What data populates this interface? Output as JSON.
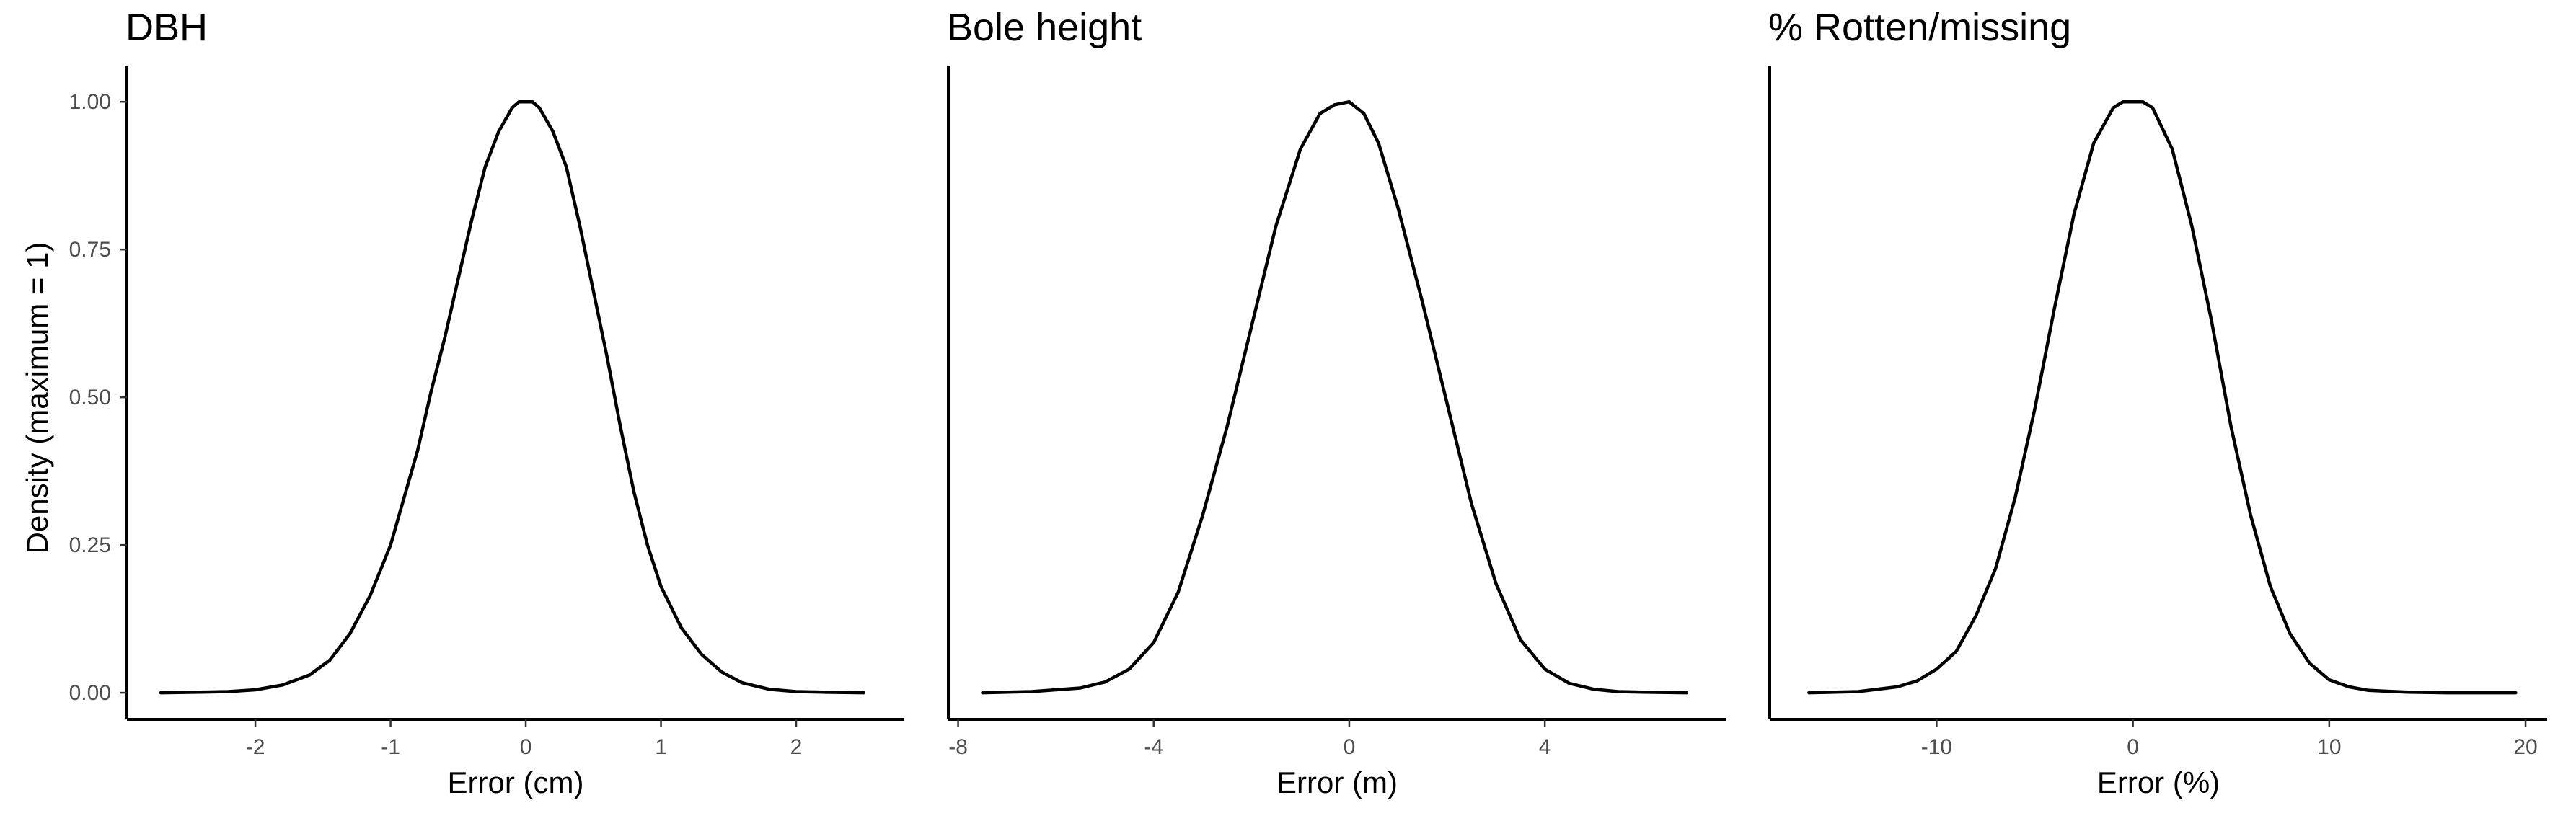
{
  "chart_data": {
    "type": "line",
    "shared_ylabel": "Density (maximum = 1)",
    "ylim": [
      -0.045,
      1.06
    ],
    "y_ticks": [
      0,
      0.25,
      0.5,
      0.75,
      1
    ],
    "y_tick_labels": [
      "0.00",
      "0.25",
      "0.50",
      "0.75",
      "1.00"
    ],
    "grid": false,
    "legend": "none",
    "line_color": "#000000",
    "panels": [
      {
        "title": "DBH",
        "xlabel": "Error (cm)",
        "xlim": [
          -2.95,
          2.8
        ],
        "x_ticks": [
          -2,
          -1,
          0,
          1,
          2
        ],
        "x_tick_labels": [
          "-2",
          "-1",
          "0",
          "1",
          "2"
        ],
        "series": [
          {
            "x": [
              -2.7,
              -2.4,
              -2.2,
              -2.0,
              -1.8,
              -1.6,
              -1.45,
              -1.3,
              -1.15,
              -1.0,
              -0.9,
              -0.8,
              -0.7,
              -0.6,
              -0.5,
              -0.4,
              -0.3,
              -0.2,
              -0.1,
              -0.05,
              0.0,
              0.05,
              0.1,
              0.2,
              0.3,
              0.4,
              0.5,
              0.6,
              0.7,
              0.8,
              0.9,
              1.0,
              1.15,
              1.3,
              1.45,
              1.6,
              1.8,
              2.0,
              2.2,
              2.5
            ],
            "y": [
              0.0,
              0.001,
              0.002,
              0.005,
              0.013,
              0.03,
              0.055,
              0.1,
              0.165,
              0.25,
              0.33,
              0.41,
              0.51,
              0.6,
              0.7,
              0.8,
              0.89,
              0.95,
              0.99,
              1.0,
              1.0,
              1.0,
              0.99,
              0.95,
              0.89,
              0.79,
              0.68,
              0.57,
              0.45,
              0.34,
              0.25,
              0.18,
              0.11,
              0.065,
              0.035,
              0.017,
              0.006,
              0.002,
              0.001,
              0.0
            ]
          }
        ]
      },
      {
        "title": "Bole height",
        "xlabel": "Error (m)",
        "xlim": [
          -8.2,
          7.7
        ],
        "x_ticks": [
          -8,
          -4,
          0,
          4
        ],
        "x_tick_labels": [
          "-8",
          "-4",
          "0",
          "4"
        ],
        "series": [
          {
            "x": [
              -7.5,
              -6.5,
              -5.5,
              -5.0,
              -4.5,
              -4.0,
              -3.5,
              -3.0,
              -2.5,
              -2.0,
              -1.5,
              -1.0,
              -0.6,
              -0.3,
              0.0,
              0.3,
              0.6,
              1.0,
              1.5,
              2.0,
              2.5,
              3.0,
              3.5,
              4.0,
              4.5,
              5.0,
              5.5,
              6.0,
              6.9
            ],
            "y": [
              0.0,
              0.002,
              0.008,
              0.018,
              0.04,
              0.085,
              0.17,
              0.3,
              0.45,
              0.62,
              0.79,
              0.92,
              0.98,
              0.995,
              1.0,
              0.98,
              0.93,
              0.82,
              0.66,
              0.49,
              0.32,
              0.185,
              0.09,
              0.04,
              0.016,
              0.006,
              0.002,
              0.001,
              0.0
            ]
          }
        ]
      },
      {
        "title": "% Rotten/missing",
        "xlabel": "Error (%)",
        "xlim": [
          -18.5,
          21.1
        ],
        "x_ticks": [
          -10,
          0,
          10,
          20
        ],
        "x_tick_labels": [
          "-10",
          "0",
          "10",
          "20"
        ],
        "series": [
          {
            "x": [
              -16.5,
              -14.0,
              -12.0,
              -11.0,
              -10.0,
              -9.0,
              -8.0,
              -7.0,
              -6.0,
              -5.0,
              -4.0,
              -3.0,
              -2.0,
              -1.0,
              -0.5,
              0.0,
              0.5,
              1.0,
              2.0,
              3.0,
              4.0,
              5.0,
              6.0,
              7.0,
              8.0,
              9.0,
              10.0,
              11.0,
              12.0,
              14.0,
              16.0,
              19.5
            ],
            "y": [
              0.0,
              0.002,
              0.01,
              0.02,
              0.04,
              0.07,
              0.13,
              0.21,
              0.33,
              0.48,
              0.65,
              0.81,
              0.93,
              0.99,
              1.0,
              1.0,
              1.0,
              0.99,
              0.92,
              0.79,
              0.63,
              0.45,
              0.3,
              0.18,
              0.1,
              0.05,
              0.022,
              0.01,
              0.004,
              0.001,
              0.0,
              0.0
            ]
          }
        ]
      }
    ]
  }
}
